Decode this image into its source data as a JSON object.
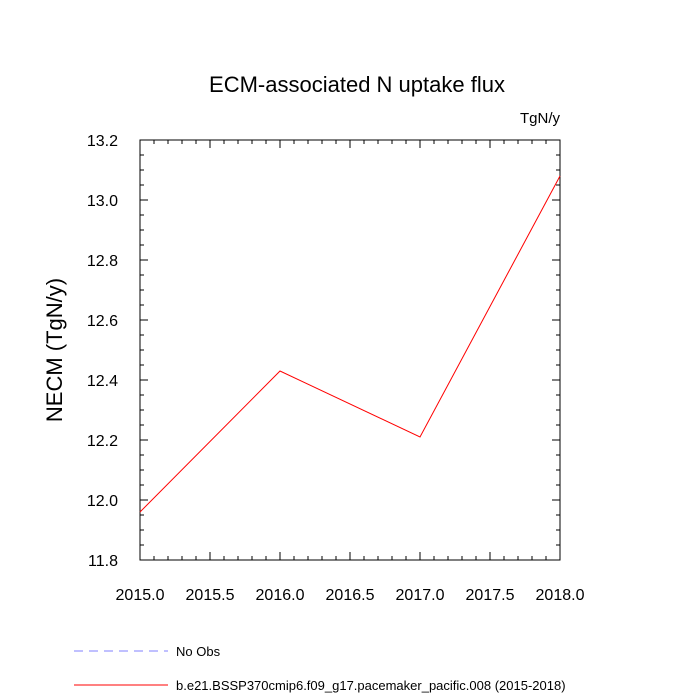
{
  "chart_data": {
    "type": "line",
    "title": "ECM-associated N uptake flux",
    "units": "TgN/y",
    "xlabel": "",
    "ylabel": "NECM  (TgN/y)",
    "xlim": [
      2015.0,
      2018.0
    ],
    "ylim": [
      11.8,
      13.2
    ],
    "x_ticks": [
      "2015.0",
      "2015.5",
      "2016.0",
      "2016.5",
      "2017.0",
      "2017.5",
      "2018.0"
    ],
    "y_ticks": [
      "11.8",
      "12.0",
      "12.2",
      "12.4",
      "12.6",
      "12.8",
      "13.0",
      "13.2"
    ],
    "series": [
      {
        "name": "b.e21.BSSP370cmip6.f09_g17.pacemaker_pacific.008 (2015-2018)",
        "x": [
          2015,
          2016,
          2017,
          2018
        ],
        "values": [
          11.96,
          12.43,
          12.21,
          13.08
        ],
        "color": "#ff0000",
        "style": "solid"
      }
    ],
    "legend": [
      {
        "label": "No Obs",
        "color": "#8080ff",
        "style": "dashed"
      },
      {
        "label": "b.e21.BSSP370cmip6.f09_g17.pacemaker_pacific.008 (2015-2018)",
        "color": "#ff0000",
        "style": "solid"
      }
    ],
    "legend_position": "bottom-left",
    "grid": false
  }
}
